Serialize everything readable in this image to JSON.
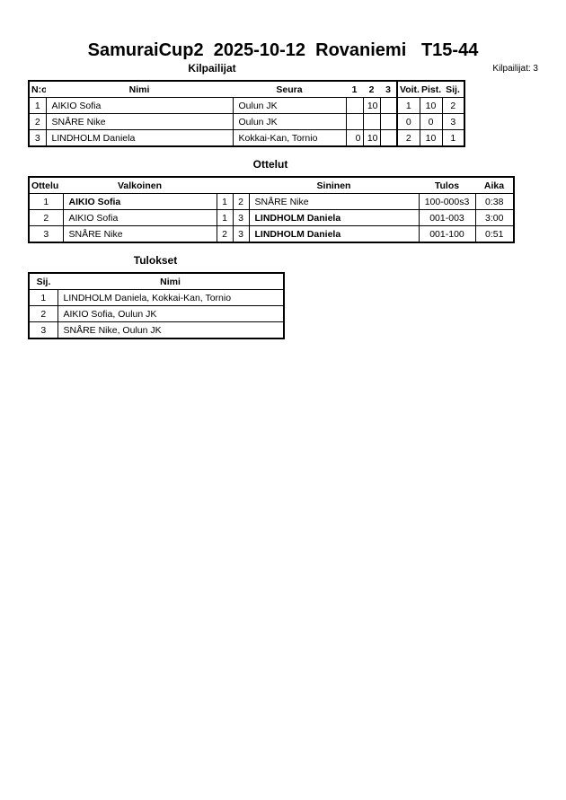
{
  "title": "SamuraiCup2  2025-10-12  Rovaniemi   T15-44",
  "competitors": {
    "heading": "Kilpailijat",
    "count_label": "Kilpailijat: 3",
    "headers": [
      "N:o",
      "Nimi",
      "Seura",
      "1",
      "2",
      "3",
      "Voit.",
      "Pist.",
      "Sij."
    ],
    "rows": [
      [
        "1",
        "AIKIO Sofia",
        "Oulun JK",
        "",
        "10",
        "",
        "1",
        "10",
        "2"
      ],
      [
        "2",
        "SNÅRE Nike",
        "Oulun JK",
        "",
        "",
        "",
        "0",
        "0",
        "3"
      ],
      [
        "3",
        "LINDHOLM Daniela",
        "Kokkai-Kan, Tornio",
        "0",
        "10",
        "",
        "2",
        "10",
        "1"
      ]
    ]
  },
  "matches": {
    "heading": "Ottelut",
    "headers": [
      "Ottelu",
      "Valkoinen",
      "",
      "",
      "Sininen",
      "Tulos",
      "Aika"
    ],
    "rows": [
      {
        "cells": [
          "1",
          "AIKIO Sofia",
          "1",
          "2",
          "SNÅRE Nike",
          "100-000s3",
          "0:38"
        ],
        "winner": "white"
      },
      {
        "cells": [
          "2",
          "AIKIO Sofia",
          "1",
          "3",
          "LINDHOLM Daniela",
          "001-003",
          "3:00"
        ],
        "winner": "blue"
      },
      {
        "cells": [
          "3",
          "SNÅRE Nike",
          "2",
          "3",
          "LINDHOLM Daniela",
          "001-100",
          "0:51"
        ],
        "winner": "blue"
      }
    ]
  },
  "results": {
    "heading": "Tulokset",
    "headers": [
      "Sij.",
      "Nimi"
    ],
    "rows": [
      [
        "1",
        "LINDHOLM Daniela, Kokkai-Kan, Tornio"
      ],
      [
        "2",
        "AIKIO Sofia, Oulun JK"
      ],
      [
        "3",
        "SNÅRE Nike, Oulun JK"
      ]
    ]
  }
}
